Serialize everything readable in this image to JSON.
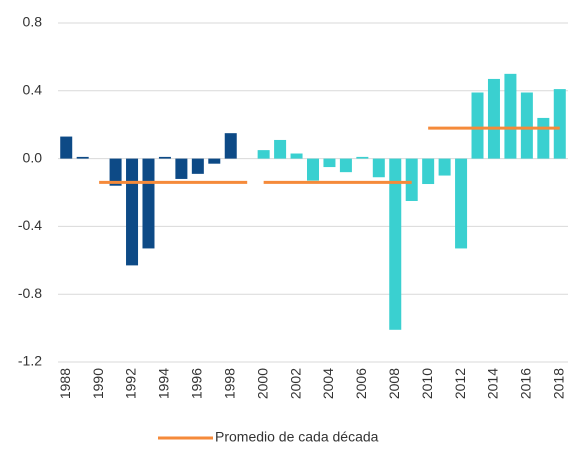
{
  "chart_data": {
    "type": "bar",
    "x": [
      1988,
      1989,
      1990,
      1991,
      1992,
      1993,
      1994,
      1995,
      1996,
      1997,
      1998,
      1999,
      2000,
      2001,
      2002,
      2003,
      2004,
      2005,
      2006,
      2007,
      2008,
      2009,
      2010,
      2011,
      2012,
      2013,
      2014,
      2015,
      2016,
      2017,
      2018
    ],
    "values": [
      0.13,
      0.01,
      0,
      -0.16,
      -0.63,
      -0.53,
      0.01,
      -0.12,
      -0.09,
      -0.03,
      0.15,
      0,
      0.05,
      0.11,
      0.03,
      -0.13,
      -0.05,
      -0.08,
      0.01,
      -0.11,
      -1.01,
      -0.25,
      -0.15,
      -0.1,
      -0.53,
      0.39,
      0.47,
      0.5,
      0.39,
      0.24,
      0.41
    ],
    "colors": [
      "#0d4a86",
      "#0d4a86",
      "#0d4a86",
      "#0d4a86",
      "#0d4a86",
      "#0d4a86",
      "#0d4a86",
      "#0d4a86",
      "#0d4a86",
      "#0d4a86",
      "#0d4a86",
      "#0d4a86",
      "#3ad0d0",
      "#3ad0d0",
      "#3ad0d0",
      "#3ad0d0",
      "#3ad0d0",
      "#3ad0d0",
      "#3ad0d0",
      "#3ad0d0",
      "#3ad0d0",
      "#3ad0d0",
      "#3ad0d0",
      "#3ad0d0",
      "#3ad0d0",
      "#3ad0d0",
      "#3ad0d0",
      "#3ad0d0",
      "#3ad0d0",
      "#3ad0d0",
      "#3ad0d0"
    ],
    "xlim": [
      1987.5,
      2018.5
    ],
    "xticks": [
      1988,
      1990,
      1992,
      1994,
      1996,
      1998,
      2000,
      2002,
      2004,
      2006,
      2008,
      2010,
      2012,
      2014,
      2016,
      2018
    ],
    "ylim": [
      -1.2,
      0.8
    ],
    "yticks": [
      -1.2,
      -0.8,
      -0.4,
      {
        "value": 0,
        "label": "0.0"
      },
      0.4,
      0.8
    ],
    "grid": true,
    "averages": {
      "name": "Promedio de cada década",
      "color": "#f58a3a",
      "segments": [
        {
          "x": [
            1990,
            1999
          ],
          "value": -0.14
        },
        {
          "x": [
            2000,
            2009
          ],
          "value": -0.14
        },
        {
          "x": [
            2010,
            2018
          ],
          "value": 0.18
        }
      ]
    }
  }
}
